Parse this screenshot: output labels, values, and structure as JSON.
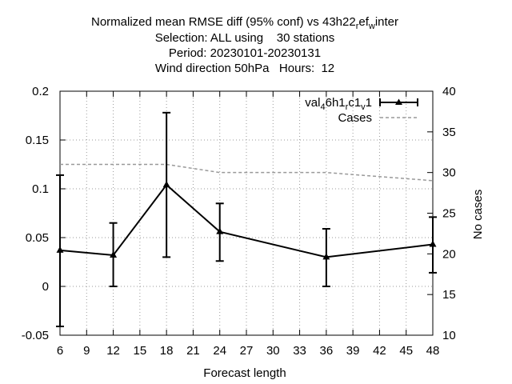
{
  "chart_data": {
    "type": "line",
    "title_lines": [
      "Normalized mean RMSE diff (95% conf) vs 43h22_ref_winter",
      "Selection: ALL using    30 stations",
      "Period: 20230101-20230131",
      "Wind direction 50hPa   Hours:  12"
    ],
    "title_rich": {
      "line1": {
        "prefix": "Normalized mean RMSE diff (95% conf) vs 43h22",
        "sub1": "r",
        "mid": "ef",
        "sub2": "w",
        "suffix": "inter"
      }
    },
    "xlabel": "Forecast length",
    "ylabel": "",
    "y2label": "No cases",
    "xlim": [
      6,
      48
    ],
    "ylim": [
      -0.05,
      0.2
    ],
    "y2lim": [
      10,
      40
    ],
    "xticks": [
      6,
      9,
      12,
      15,
      18,
      21,
      24,
      27,
      30,
      33,
      36,
      39,
      42,
      45,
      48
    ],
    "yticks": [
      {
        "v": -0.05,
        "label": "-0.05"
      },
      {
        "v": 0,
        "label": "0"
      },
      {
        "v": 0.05,
        "label": "0.05"
      },
      {
        "v": 0.1,
        "label": "0.1"
      },
      {
        "v": 0.15,
        "label": "0.15"
      },
      {
        "v": 0.2,
        "label": "0.2"
      }
    ],
    "y2ticks": [
      10,
      15,
      20,
      25,
      30,
      35,
      40
    ],
    "grid": true,
    "legend_position": "top-right",
    "series": [
      {
        "name": "val_46h1_rc1_v1",
        "name_rich": [
          "val",
          "4",
          "6h1",
          "r",
          "c1",
          "v",
          "1"
        ],
        "axis": "y",
        "color": "#000000",
        "marker": "triangle",
        "points": [
          {
            "x": 6,
            "y": 0.037,
            "lo": -0.041,
            "hi": 0.114
          },
          {
            "x": 12,
            "y": 0.032,
            "lo": 0.0,
            "hi": 0.065
          },
          {
            "x": 18,
            "y": 0.104,
            "lo": 0.03,
            "hi": 0.178
          },
          {
            "x": 24,
            "y": 0.056,
            "lo": 0.026,
            "hi": 0.085
          },
          {
            "x": 36,
            "y": 0.03,
            "lo": 0.0,
            "hi": 0.059
          },
          {
            "x": 48,
            "y": 0.043,
            "lo": 0.014,
            "hi": 0.071
          }
        ]
      },
      {
        "name": "Cases",
        "axis": "y2",
        "color": "#999999",
        "dash": true,
        "points": [
          {
            "x": 6,
            "y": 31
          },
          {
            "x": 12,
            "y": 31
          },
          {
            "x": 18,
            "y": 31
          },
          {
            "x": 24,
            "y": 30
          },
          {
            "x": 36,
            "y": 30
          },
          {
            "x": 48,
            "y": 29
          }
        ]
      }
    ]
  }
}
